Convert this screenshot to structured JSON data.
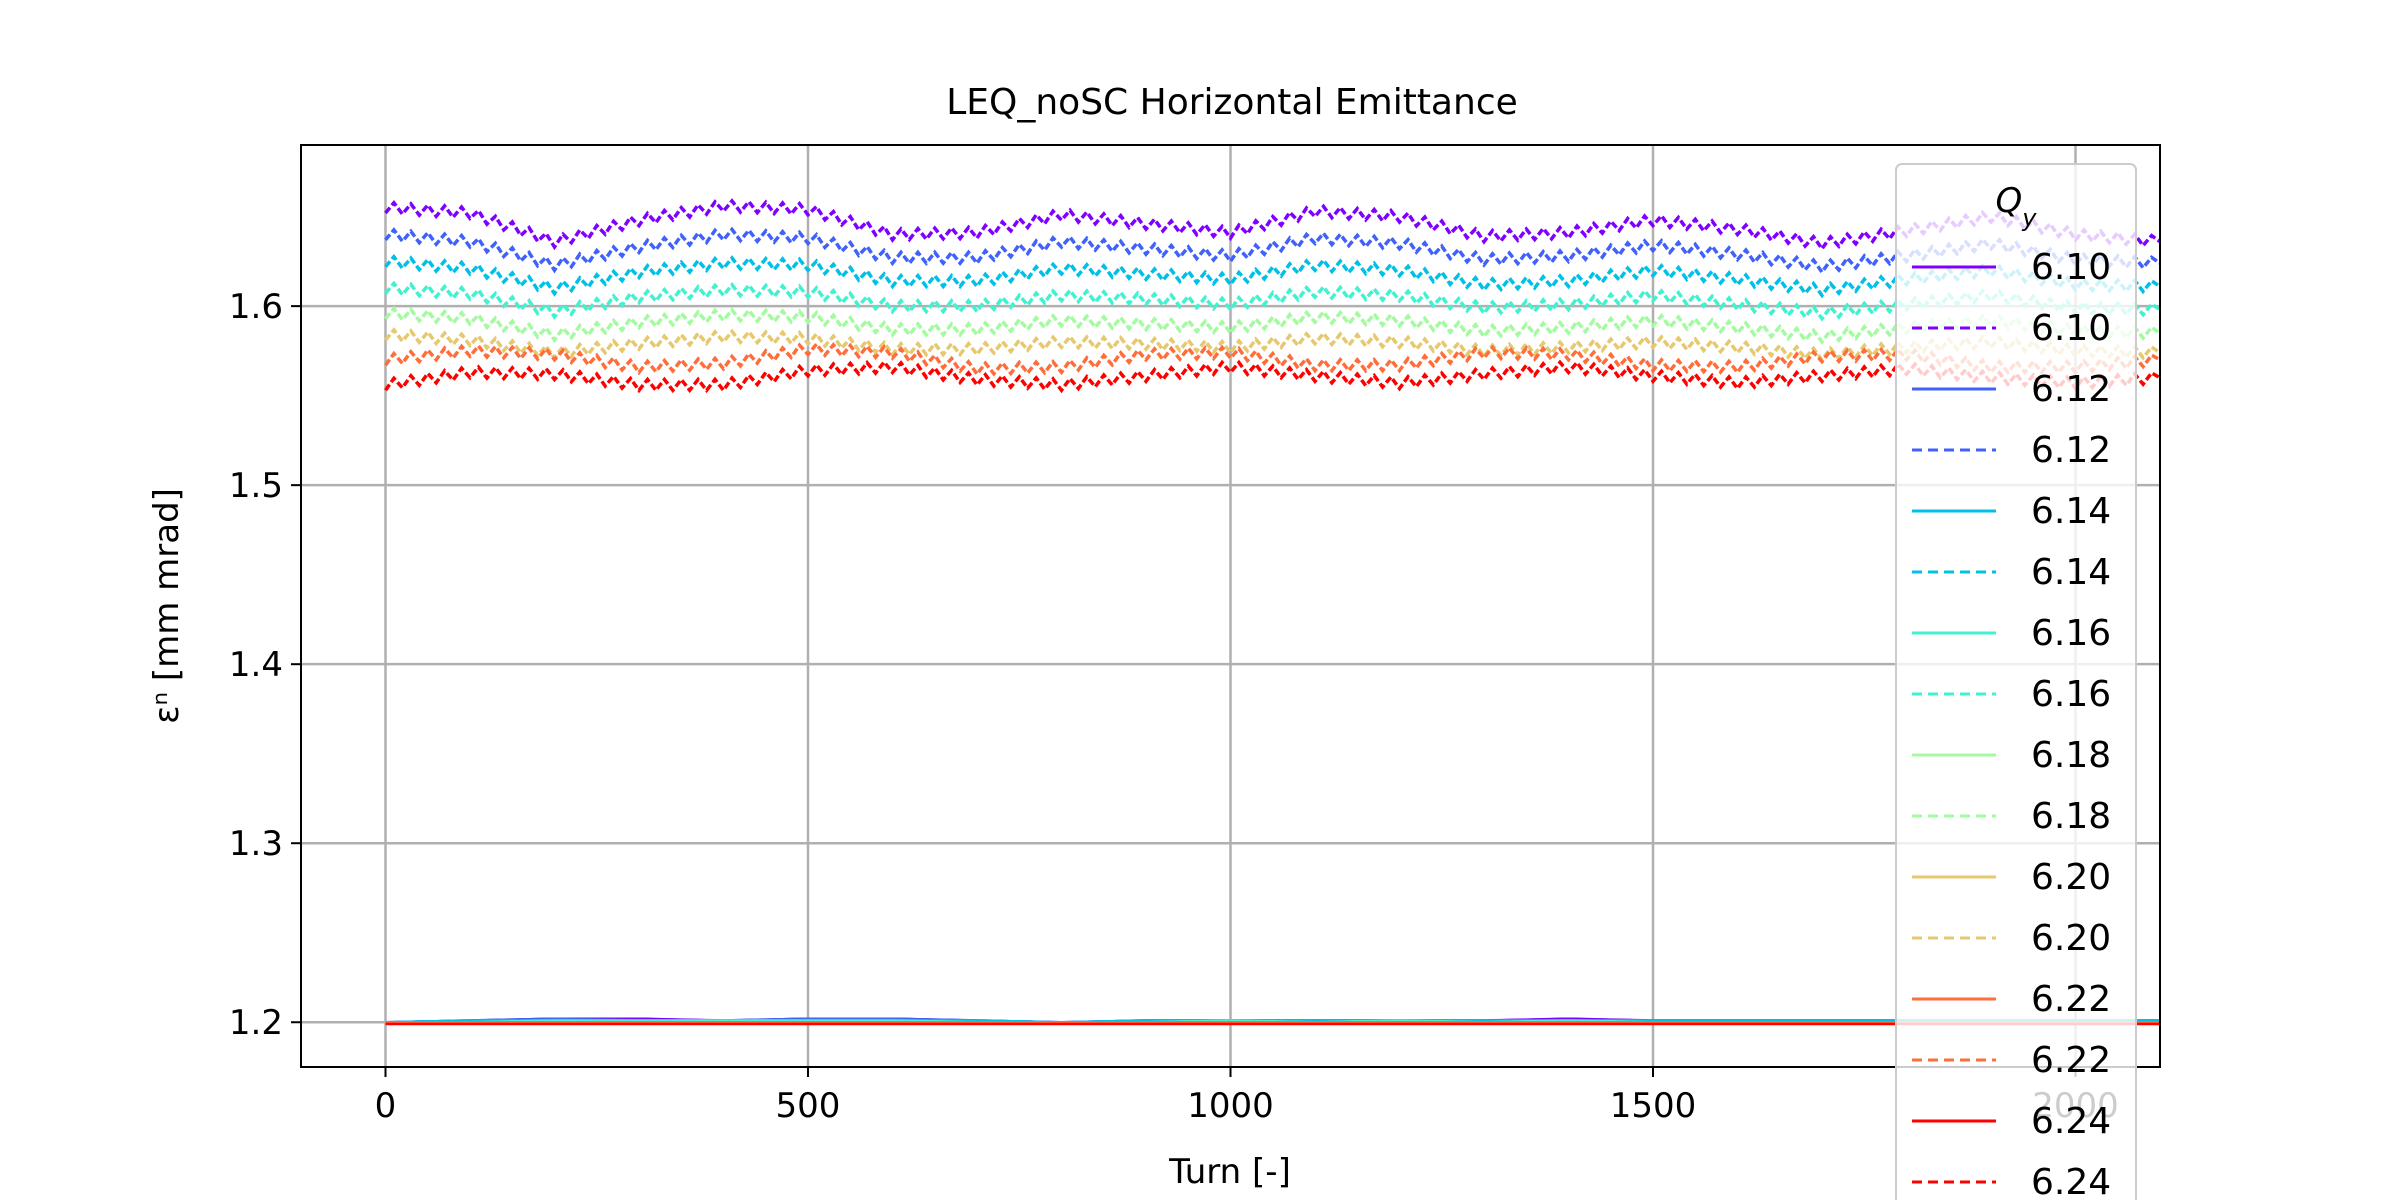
{
  "chart_data": {
    "type": "line",
    "title": "LEQ_noSC Horizontal Emittance",
    "xlabel": "Turn [-]",
    "ylabel": "εⁿ [mm mrad]",
    "xlim": [
      -100,
      2100
    ],
    "ylim": [
      1.175,
      1.69
    ],
    "xticks": [
      0,
      500,
      1000,
      1500,
      2000
    ],
    "xtick_labels": [
      "0",
      "500",
      "1000",
      "1500",
      "2000"
    ],
    "yticks": [
      1.2,
      1.3,
      1.4,
      1.5,
      1.6
    ],
    "ytick_labels": [
      "1.2",
      "1.3",
      "1.4",
      "1.5",
      "1.6"
    ],
    "grid": true,
    "legend": {
      "title": "Q_y",
      "placement": "right"
    },
    "x": [
      0,
      100,
      200,
      300,
      400,
      500,
      600,
      700,
      800,
      900,
      1000,
      1100,
      1200,
      1300,
      1400,
      1500,
      1600,
      1700,
      1800,
      1900,
      2000,
      2100
    ],
    "series": [
      {
        "name": "6.10",
        "style": "solid",
        "color": "#8000ff",
        "values": [
          1.2,
          1.201,
          1.202,
          1.202,
          1.201,
          1.202,
          1.202,
          1.201,
          1.2,
          1.201,
          1.201,
          1.201,
          1.201,
          1.201,
          1.202,
          1.201,
          1.201,
          1.201,
          1.201,
          1.201,
          1.201,
          1.201
        ]
      },
      {
        "name": "6.10",
        "style": "dashed",
        "color": "#8000ff",
        "values": [
          1.655,
          1.652,
          1.636,
          1.648,
          1.656,
          1.654,
          1.64,
          1.641,
          1.651,
          1.646,
          1.641,
          1.653,
          1.65,
          1.639,
          1.641,
          1.648,
          1.643,
          1.635,
          1.642,
          1.65,
          1.64,
          1.636
        ]
      },
      {
        "name": "6.12",
        "style": "solid",
        "color": "#4062fa",
        "values": [
          1.2,
          1.201,
          1.202,
          1.201,
          1.201,
          1.202,
          1.202,
          1.201,
          1.2,
          1.201,
          1.201,
          1.201,
          1.201,
          1.201,
          1.201,
          1.201,
          1.201,
          1.201,
          1.201,
          1.201,
          1.201,
          1.201
        ]
      },
      {
        "name": "6.12",
        "style": "dashed",
        "color": "#4062fa",
        "values": [
          1.64,
          1.636,
          1.623,
          1.633,
          1.64,
          1.638,
          1.627,
          1.627,
          1.636,
          1.632,
          1.628,
          1.638,
          1.635,
          1.626,
          1.628,
          1.634,
          1.629,
          1.622,
          1.628,
          1.635,
          1.626,
          1.624
        ]
      },
      {
        "name": "6.14",
        "style": "solid",
        "color": "#00c0e7",
        "values": [
          1.2,
          1.201,
          1.201,
          1.201,
          1.201,
          1.201,
          1.201,
          1.201,
          1.2,
          1.201,
          1.201,
          1.201,
          1.201,
          1.201,
          1.201,
          1.201,
          1.201,
          1.201,
          1.201,
          1.201,
          1.201,
          1.201
        ]
      },
      {
        "name": "6.14",
        "style": "dashed",
        "color": "#00c0e7",
        "values": [
          1.625,
          1.621,
          1.61,
          1.619,
          1.624,
          1.623,
          1.614,
          1.614,
          1.621,
          1.618,
          1.615,
          1.623,
          1.62,
          1.612,
          1.614,
          1.62,
          1.615,
          1.609,
          1.615,
          1.62,
          1.612,
          1.611
        ]
      },
      {
        "name": "6.16",
        "style": "solid",
        "color": "#41f1d0",
        "values": [
          1.2,
          1.2,
          1.201,
          1.201,
          1.201,
          1.201,
          1.201,
          1.2,
          1.2,
          1.2,
          1.201,
          1.2,
          1.201,
          1.2,
          1.201,
          1.2,
          1.2,
          1.2,
          1.2,
          1.2,
          1.2,
          1.2
        ]
      },
      {
        "name": "6.16",
        "style": "dashed",
        "color": "#41f1d0",
        "values": [
          1.61,
          1.607,
          1.597,
          1.605,
          1.609,
          1.608,
          1.6,
          1.6,
          1.606,
          1.604,
          1.601,
          1.608,
          1.606,
          1.599,
          1.601,
          1.606,
          1.601,
          1.596,
          1.601,
          1.606,
          1.599,
          1.598
        ]
      },
      {
        "name": "6.18",
        "style": "solid",
        "color": "#a3fb9f",
        "values": [
          1.2,
          1.2,
          1.2,
          1.2,
          1.2,
          1.2,
          1.2,
          1.2,
          1.2,
          1.2,
          1.2,
          1.2,
          1.2,
          1.2,
          1.2,
          1.2,
          1.2,
          1.2,
          1.2,
          1.2,
          1.2,
          1.2
        ]
      },
      {
        "name": "6.18",
        "style": "dashed",
        "color": "#a3fb9f",
        "values": [
          1.596,
          1.593,
          1.584,
          1.591,
          1.595,
          1.594,
          1.587,
          1.587,
          1.592,
          1.59,
          1.588,
          1.594,
          1.592,
          1.586,
          1.588,
          1.592,
          1.588,
          1.583,
          1.588,
          1.592,
          1.586,
          1.585
        ]
      },
      {
        "name": "6.20",
        "style": "solid",
        "color": "#e6c86f",
        "values": [
          1.2,
          1.2,
          1.2,
          1.2,
          1.2,
          1.2,
          1.2,
          1.2,
          1.2,
          1.2,
          1.2,
          1.2,
          1.2,
          1.2,
          1.2,
          1.2,
          1.2,
          1.2,
          1.2,
          1.2,
          1.2,
          1.2
        ]
      },
      {
        "name": "6.20",
        "style": "dashed",
        "color": "#e6c86f",
        "values": [
          1.584,
          1.581,
          1.574,
          1.579,
          1.583,
          1.582,
          1.576,
          1.576,
          1.58,
          1.579,
          1.577,
          1.582,
          1.58,
          1.575,
          1.577,
          1.58,
          1.577,
          1.573,
          1.577,
          1.58,
          1.575,
          1.574
        ]
      },
      {
        "name": "6.22",
        "style": "solid",
        "color": "#ff6e3a",
        "values": [
          1.2,
          1.2,
          1.2,
          1.2,
          1.2,
          1.2,
          1.2,
          1.2,
          1.2,
          1.2,
          1.2,
          1.2,
          1.2,
          1.2,
          1.2,
          1.2,
          1.2,
          1.2,
          1.2,
          1.2,
          1.2,
          1.2
        ]
      },
      {
        "name": "6.22",
        "style": "dashed",
        "color": "#ff6e3a",
        "values": [
          1.57,
          1.575,
          1.573,
          1.566,
          1.568,
          1.576,
          1.574,
          1.565,
          1.566,
          1.573,
          1.574,
          1.567,
          1.567,
          1.574,
          1.573,
          1.567,
          1.566,
          1.572,
          1.573,
          1.566,
          1.566,
          1.57
        ]
      },
      {
        "name": "6.24",
        "style": "solid",
        "color": "#ff0000",
        "values": [
          1.199,
          1.199,
          1.199,
          1.199,
          1.199,
          1.199,
          1.199,
          1.199,
          1.199,
          1.199,
          1.199,
          1.199,
          1.199,
          1.199,
          1.199,
          1.199,
          1.199,
          1.199,
          1.199,
          1.199,
          1.199,
          1.199
        ]
      },
      {
        "name": "6.24",
        "style": "dashed",
        "color": "#ff0000",
        "values": [
          1.556,
          1.563,
          1.562,
          1.556,
          1.556,
          1.564,
          1.566,
          1.559,
          1.556,
          1.561,
          1.566,
          1.561,
          1.557,
          1.562,
          1.566,
          1.561,
          1.557,
          1.561,
          1.565,
          1.56,
          1.557,
          1.56
        ]
      }
    ]
  }
}
